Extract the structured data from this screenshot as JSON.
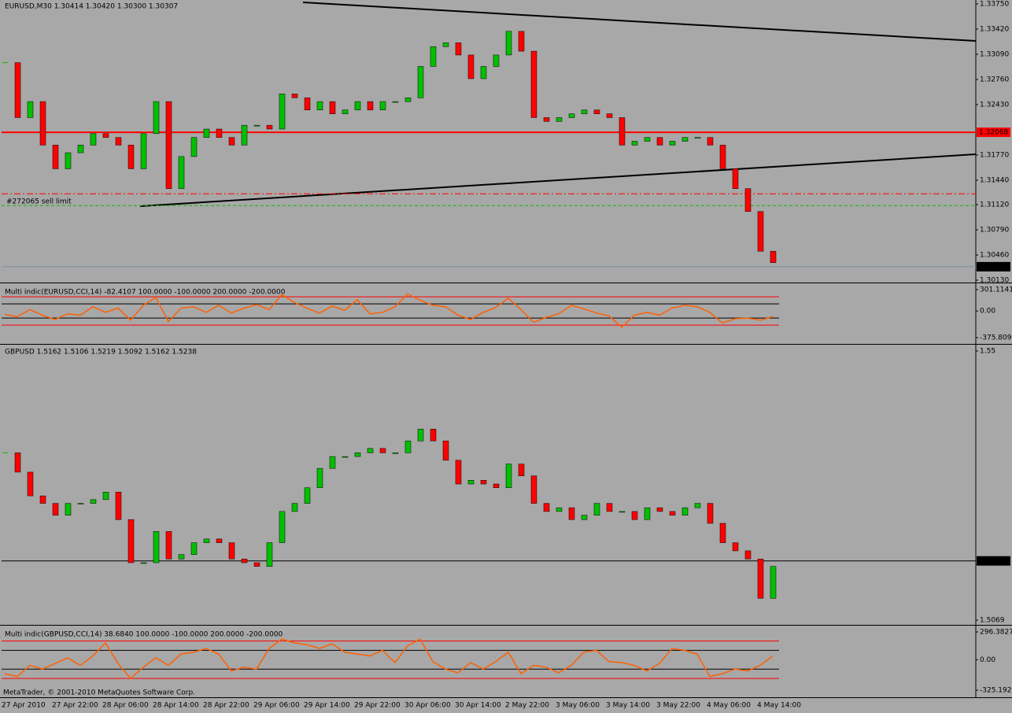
{
  "chart_data": [
    {
      "type": "candlestick",
      "title": "EURUSD,M30  1.30414 1.30420 1.30300 1.30307",
      "values": [
        1.3298,
        1.3226,
        1.3247,
        1.319,
        1.3159,
        1.318,
        1.319,
        1.3205,
        1.32,
        1.319,
        1.3159,
        1.3205,
        1.3247,
        1.3133,
        1.3175,
        1.32,
        1.3211,
        1.32,
        1.319,
        1.3216,
        1.3216,
        1.3211,
        1.3257,
        1.3252,
        1.3236,
        1.3247,
        1.3231,
        1.3236,
        1.3247,
        1.3236,
        1.3247,
        1.3247,
        1.3252,
        1.3293,
        1.3319,
        1.3324,
        1.3308,
        1.3277,
        1.3293,
        1.3308,
        1.3339,
        1.3313,
        1.3226,
        1.3221,
        1.3226,
        1.3231,
        1.3236,
        1.3231,
        1.3226,
        1.319,
        1.3195,
        1.32,
        1.319,
        1.3195,
        1.32,
        1.32,
        1.319,
        1.3159,
        1.3133,
        1.3103,
        1.3051,
        1.3036
      ],
      "up_color": "#00c000",
      "down_color": "#ff0000",
      "ylim": [
        1.3011,
        1.3378
      ],
      "yticks": [
        {
          "value": 1.3375,
          "label": "1.33750"
        },
        {
          "value": 1.3342,
          "label": "1.33420"
        },
        {
          "value": 1.3309,
          "label": "1.33090"
        },
        {
          "value": 1.3276,
          "label": "1.32760"
        },
        {
          "value": 1.3243,
          "label": "1.32430"
        },
        {
          "value": 1.3177,
          "label": "1.31770"
        },
        {
          "value": 1.3144,
          "label": "1.31440"
        },
        {
          "value": 1.3112,
          "label": "1.31120"
        },
        {
          "value": 1.3079,
          "label": "1.30790"
        },
        {
          "value": 1.3046,
          "label": "1.30460"
        },
        {
          "value": 1.3013,
          "label": "1.30130"
        }
      ],
      "hlines": [
        {
          "value": 1.32068,
          "label": "1.32068",
          "color": "#ff0000",
          "label_color": "#ff0000"
        },
        {
          "value": 1.30307,
          "label": "1.30307",
          "color": "#7890a0",
          "label_color": "#000000"
        }
      ],
      "orders": [
        {
          "value": 1.31262,
          "color": "#ff0000",
          "style": "dashdot"
        },
        {
          "value": 1.31108,
          "color": "#00c000",
          "style": "dashed"
        }
      ],
      "annotation": "#272065 sell limit"
    },
    {
      "type": "line",
      "title": "Multi indic(EURUSD,CCI,14) -82.4107 100.0000 -100.0000 200.0000 -200.0000",
      "values": [
        -50,
        -80,
        20,
        -60,
        -120,
        -40,
        -60,
        60,
        -20,
        40,
        -130,
        80,
        190,
        -150,
        40,
        60,
        -20,
        80,
        -30,
        40,
        90,
        20,
        230,
        120,
        40,
        -30,
        70,
        10,
        160,
        -40,
        -20,
        60,
        240,
        150,
        80,
        60,
        -60,
        -120,
        -20,
        50,
        180,
        20,
        -160,
        -90,
        -40,
        80,
        30,
        -30,
        -70,
        -230,
        -60,
        -20,
        -60,
        40,
        80,
        60,
        -20,
        -170,
        -110,
        -100,
        -130,
        -80
      ],
      "color": "#ff6000",
      "ylim": [
        -375.809,
        301.1141
      ],
      "yticks": [
        301.1141,
        {
          "value": 0,
          "label": "0.00"
        },
        -375.809
      ],
      "levels": [
        {
          "value": 200,
          "color": "#ff0000"
        },
        {
          "value": 100,
          "color": "#000000"
        },
        {
          "value": -100,
          "color": "#000000"
        },
        {
          "value": -200,
          "color": "#ff0000"
        }
      ]
    },
    {
      "type": "candlestick",
      "title": "GBPUSD 1.5162 1.5106 1.5219 1.5092 1.5162 1.5238",
      "values": [
        1.5337,
        1.5306,
        1.5268,
        1.5256,
        1.5237,
        1.5256,
        1.5256,
        1.5262,
        1.5274,
        1.523,
        1.5161,
        1.5161,
        1.5211,
        1.5167,
        1.5174,
        1.5193,
        1.5199,
        1.5193,
        1.5167,
        1.5161,
        1.5155,
        1.5193,
        1.5243,
        1.5256,
        1.5281,
        1.5312,
        1.5331,
        1.5331,
        1.5337,
        1.5344,
        1.5337,
        1.5337,
        1.5356,
        1.5375,
        1.5356,
        1.5325,
        1.5287,
        1.5293,
        1.5287,
        1.5281,
        1.5319,
        1.53,
        1.5256,
        1.5243,
        1.5249,
        1.523,
        1.5237,
        1.5256,
        1.5243,
        1.5243,
        1.523,
        1.5249,
        1.5243,
        1.5237,
        1.5249,
        1.5256,
        1.5224,
        1.5193,
        1.518,
        1.5167,
        1.5104,
        1.5155
      ],
      "up_color": "#00c000",
      "down_color": "#ff0000",
      "ylim": [
        1.5069,
        1.55
      ],
      "yticks": [
        1.55,
        1.5069
      ],
      "hlines": [
        {
          "value": 1.51639,
          "label": "1.51639",
          "color": "#000000",
          "label_color": "#000000"
        }
      ]
    },
    {
      "type": "line",
      "title": "Multi indic(GBPUSD,CCI,14) 38.6840 100.0000 -100.0000 200.0000 -200.0000",
      "values": [
        -150,
        -180,
        -60,
        -100,
        -40,
        20,
        -60,
        40,
        180,
        -40,
        -200,
        -80,
        20,
        -60,
        60,
        80,
        120,
        60,
        -120,
        -80,
        -100,
        120,
        220,
        180,
        160,
        120,
        170,
        80,
        60,
        40,
        100,
        -30,
        150,
        220,
        -20,
        -100,
        -140,
        -30,
        -100,
        -20,
        80,
        -150,
        -60,
        -80,
        -140,
        -60,
        80,
        100,
        -20,
        -30,
        -60,
        -120,
        -40,
        120,
        100,
        60,
        -180,
        -150,
        -100,
        -120,
        -60,
        40
      ],
      "color": "#ff6000",
      "ylim": [
        -325.1921,
        296.3827
      ],
      "yticks": [
        296.3827,
        {
          "value": 0,
          "label": "0.00"
        },
        -325.1921
      ],
      "levels": [
        {
          "value": 200,
          "color": "#ff0000"
        },
        {
          "value": 100,
          "color": "#000000"
        },
        {
          "value": -100,
          "color": "#000000"
        },
        {
          "value": -200,
          "color": "#ff0000"
        }
      ],
      "categories": [
        "27 Apr 2010",
        null,
        null,
        null,
        "27 Apr 22:00",
        null,
        null,
        null,
        "28 Apr 06:00",
        null,
        null,
        null,
        "28 Apr 14:00",
        null,
        null,
        null,
        "28 Apr 22:00",
        null,
        null,
        null,
        "29 Apr 06:00",
        null,
        null,
        null,
        "29 Apr 14:00",
        null,
        null,
        null,
        "29 Apr 22:00",
        null,
        null,
        null,
        "30 Apr 06:00",
        null,
        null,
        null,
        "30 Apr 14:00",
        null,
        null,
        null,
        "2 May 22:00",
        null,
        null,
        null,
        "3 May 06:00",
        null,
        null,
        null,
        "3 May 14:00",
        null,
        null,
        null,
        "3 May 22:00",
        null,
        null,
        null,
        "4 May 06:00",
        null,
        null,
        null,
        "4 May 14:00",
        null
      ],
      "footer": "MetaTrader, © 2001-2010 MetaQuotes Software Corp."
    }
  ]
}
